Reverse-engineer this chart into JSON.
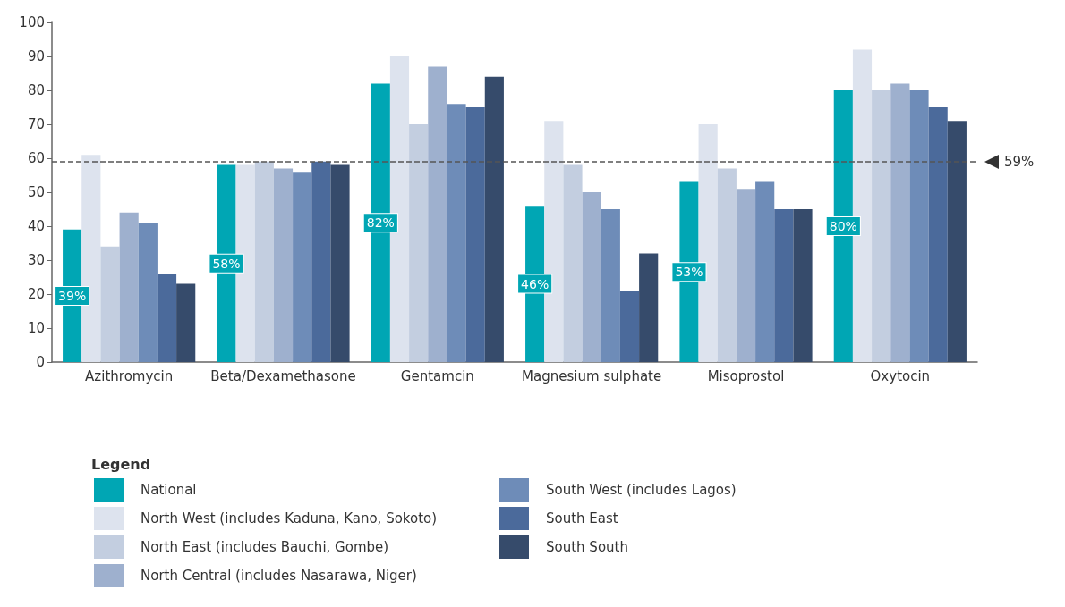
{
  "chart_data": {
    "type": "bar",
    "categories": [
      "Azithromycin",
      "Beta/Dexamethasone",
      "Gentamcin",
      "Magnesium sulphate",
      "Misoprostol",
      "Oxytocin"
    ],
    "series": [
      {
        "name": "National",
        "color": "#00a6b4",
        "values": [
          39,
          58,
          82,
          46,
          53,
          80
        ],
        "value_labels": [
          "39%",
          "58%",
          "82%",
          "46%",
          "53%",
          "80%"
        ]
      },
      {
        "name": "North West (includes Kaduna, Kano, Sokoto)",
        "color": "#dde3ee",
        "values": [
          61,
          58,
          90,
          71,
          70,
          92
        ]
      },
      {
        "name": "North East (includes Bauchi, Gombe)",
        "color": "#c3cee0",
        "values": [
          34,
          59,
          70,
          58,
          57,
          80
        ]
      },
      {
        "name": "North Central (includes Nasarawa, Niger)",
        "color": "#9eb0ce",
        "values": [
          44,
          57,
          87,
          50,
          51,
          82
        ]
      },
      {
        "name": "South West (includes Lagos)",
        "color": "#6e8cb8",
        "values": [
          41,
          56,
          76,
          45,
          53,
          80
        ]
      },
      {
        "name": "South East",
        "color": "#4b6a9b",
        "values": [
          26,
          59,
          75,
          21,
          45,
          75
        ]
      },
      {
        "name": "South South",
        "color": "#364b6b",
        "values": [
          23,
          58,
          84,
          32,
          45,
          71
        ]
      }
    ],
    "ylim": [
      0,
      100
    ],
    "yticks": [
      0,
      10,
      20,
      30,
      40,
      50,
      60,
      70,
      80,
      90,
      100
    ],
    "ref_lines": [
      {
        "axis": "y",
        "value": 59,
        "label": "59%",
        "color": "#555555",
        "line_style": "dashed"
      }
    ],
    "grid": false,
    "legend": "bottom",
    "legend_title": "Legend"
  }
}
